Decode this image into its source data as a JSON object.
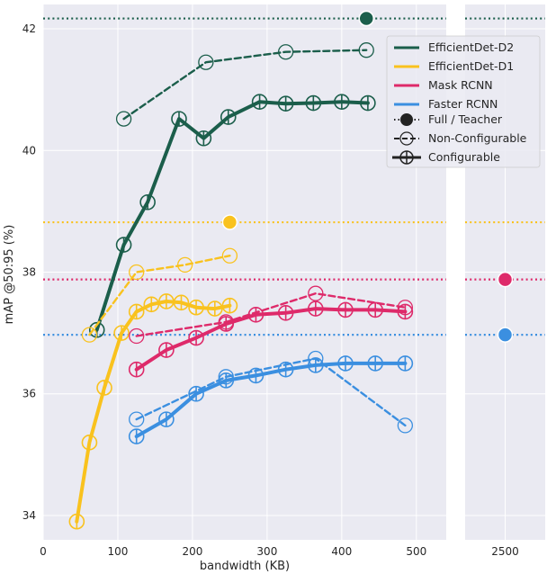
{
  "chart_data": {
    "type": "line",
    "xlabel": "bandwidth (KB)",
    "ylabel": "mAP @50:95 (%)",
    "ylim": [
      33.6,
      42.4
    ],
    "y_ticks": [
      "34",
      "36",
      "38",
      "40",
      "42"
    ],
    "main_panel": {
      "xlim": [
        0,
        540
      ],
      "x_ticks": [
        "0",
        "100",
        "200",
        "300",
        "400",
        "500"
      ]
    },
    "right_panel": {
      "xlim": [
        2440,
        2560
      ],
      "x_ticks": [
        "2500"
      ]
    },
    "grid": true,
    "legend_position": "top-right",
    "colors": {
      "EfficientDet-D2": "#1b5e4b",
      "EfficientDet-D1": "#f9c21e",
      "Mask RCNN": "#de2a6a",
      "Faster RCNN": "#3b8fe0"
    },
    "legend": {
      "models": [
        "EfficientDet-D2",
        "EfficientDet-D1",
        "Mask RCNN",
        "Faster RCNN"
      ],
      "styles": [
        "Full / Teacher",
        "Non-Configurable",
        "Configurable"
      ]
    },
    "teacher": [
      {
        "name": "EfficientDet-D2",
        "y": 42.17,
        "x": 433,
        "x_right": null
      },
      {
        "name": "EfficientDet-D1",
        "y": 38.82,
        "x": 250,
        "x_right": null
      },
      {
        "name": "Mask RCNN",
        "y": 37.88,
        "x": null,
        "x_right": 2500
      },
      {
        "name": "Faster RCNN",
        "y": 36.97,
        "x": null,
        "x_right": 2500
      }
    ],
    "series": [
      {
        "name": "EfficientDet-D2",
        "style": "Configurable",
        "x": [
          72,
          108,
          140,
          182,
          215,
          248,
          290,
          325,
          362,
          400,
          435
        ],
        "y": [
          37.05,
          38.45,
          39.15,
          40.52,
          40.2,
          40.55,
          40.8,
          40.77,
          40.78,
          40.8,
          40.78
        ]
      },
      {
        "name": "EfficientDet-D2",
        "style": "Non-Configurable",
        "x": [
          108,
          218,
          325,
          433
        ],
        "y": [
          40.52,
          41.45,
          41.62,
          41.65
        ]
      },
      {
        "name": "EfficientDet-D1",
        "style": "Configurable",
        "x": [
          45,
          62,
          82,
          105,
          125,
          145,
          165,
          185,
          205,
          230,
          250
        ],
        "y": [
          33.9,
          35.2,
          36.1,
          37.0,
          37.35,
          37.47,
          37.52,
          37.5,
          37.42,
          37.4,
          37.45
        ]
      },
      {
        "name": "EfficientDet-D1",
        "style": "Non-Configurable",
        "x": [
          62,
          125,
          190,
          250
        ],
        "y": [
          36.97,
          38.0,
          38.12,
          38.27
        ]
      },
      {
        "name": "Mask RCNN",
        "style": "Configurable",
        "x": [
          125,
          165,
          205,
          245,
          285,
          325,
          365,
          405,
          445,
          485
        ],
        "y": [
          36.4,
          36.72,
          36.92,
          37.15,
          37.3,
          37.33,
          37.4,
          37.38,
          37.38,
          37.35
        ]
      },
      {
        "name": "Mask RCNN",
        "style": "Non-Configurable",
        "x": [
          125,
          245,
          365,
          485
        ],
        "y": [
          36.95,
          37.18,
          37.65,
          37.42
        ]
      },
      {
        "name": "Faster RCNN",
        "style": "Configurable",
        "x": [
          125,
          165,
          205,
          245,
          285,
          325,
          365,
          405,
          445,
          485
        ],
        "y": [
          35.3,
          35.58,
          36.0,
          36.22,
          36.3,
          36.4,
          36.47,
          36.5,
          36.5,
          36.5
        ]
      },
      {
        "name": "Faster RCNN",
        "style": "Non-Configurable",
        "x": [
          125,
          245,
          365,
          485
        ],
        "y": [
          35.58,
          36.28,
          36.58,
          35.48
        ]
      }
    ]
  }
}
